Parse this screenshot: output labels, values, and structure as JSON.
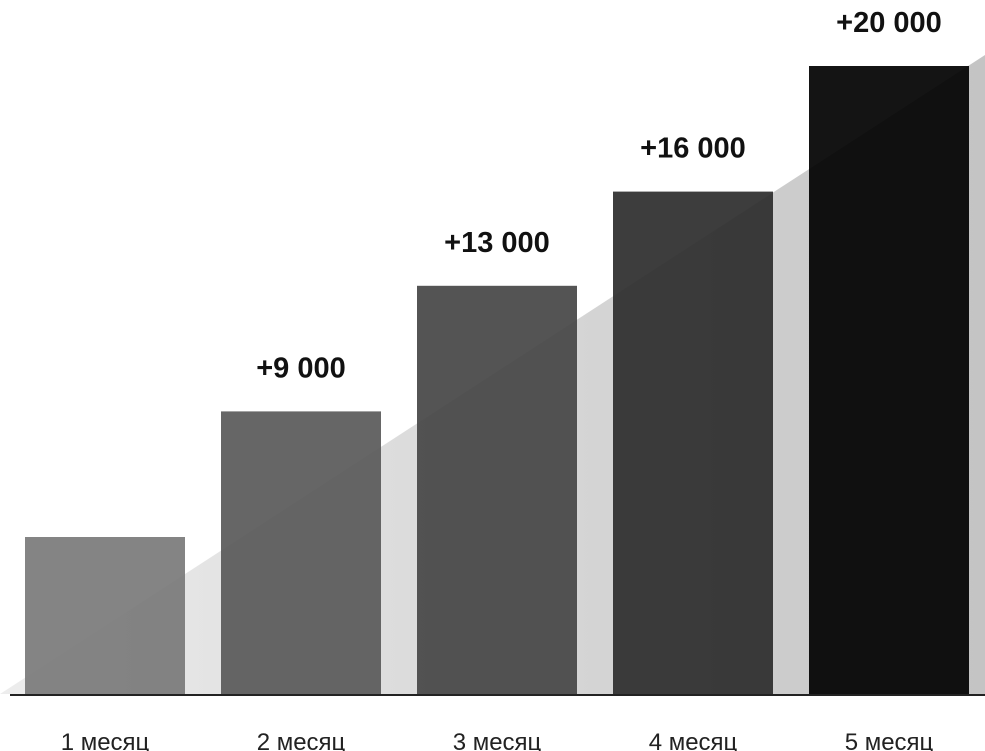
{
  "chart_data": {
    "type": "bar",
    "categories": [
      "1 месяц",
      "2 месяц",
      "3 месяц",
      "4 месяц",
      "5 месяц"
    ],
    "values": [
      5000,
      9000,
      13000,
      16000,
      20000
    ],
    "data_labels": [
      "",
      "+9 000",
      "+13 000",
      "+16 000",
      "+20 000"
    ],
    "ylim": [
      0,
      20000
    ],
    "grid": false,
    "legend": "none",
    "title": "",
    "xlabel": "",
    "ylabel": "",
    "colors": {
      "bars": [
        "#7a7a7a",
        "#595959",
        "#454545",
        "#2c2c2c",
        "#000000"
      ],
      "wedge_light": "#ededed",
      "wedge_dark": "#c4c4c4",
      "baseline": "#222222"
    }
  }
}
